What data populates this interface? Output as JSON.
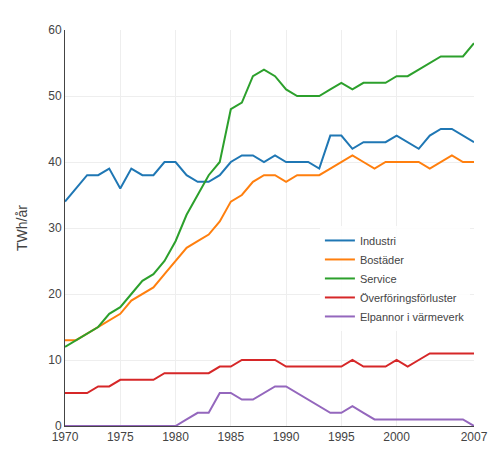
{
  "chart_data": {
    "type": "line",
    "ylabel": "TWh/år",
    "x": [
      1970,
      1971,
      1972,
      1973,
      1974,
      1975,
      1976,
      1977,
      1978,
      1979,
      1980,
      1981,
      1982,
      1983,
      1984,
      1985,
      1986,
      1987,
      1988,
      1989,
      1990,
      1991,
      1992,
      1993,
      1994,
      1995,
      1996,
      1997,
      1998,
      1999,
      2000,
      2001,
      2002,
      2003,
      2004,
      2005,
      2006,
      2007
    ],
    "series": [
      {
        "name": "Industri",
        "values": [
          34,
          36,
          38,
          38,
          39,
          36,
          39,
          38,
          38,
          40,
          40,
          38,
          37,
          37,
          38,
          40,
          41,
          41,
          40,
          41,
          40,
          40,
          40,
          39,
          44,
          44,
          42,
          43,
          43,
          43,
          44,
          43,
          42,
          44,
          45,
          45,
          44,
          43
        ]
      },
      {
        "name": "Bostäder",
        "values": [
          13,
          13,
          14,
          15,
          16,
          17,
          19,
          20,
          21,
          23,
          25,
          27,
          28,
          29,
          31,
          34,
          35,
          37,
          38,
          38,
          37,
          38,
          38,
          38,
          39,
          40,
          41,
          40,
          39,
          40,
          40,
          40,
          40,
          39,
          40,
          41,
          40,
          40
        ]
      },
      {
        "name": "Service",
        "values": [
          12,
          13,
          14,
          15,
          17,
          18,
          20,
          22,
          23,
          25,
          28,
          32,
          35,
          38,
          40,
          48,
          49,
          53,
          54,
          53,
          51,
          50,
          50,
          50,
          51,
          52,
          51,
          52,
          52,
          52,
          53,
          53,
          54,
          55,
          56,
          56,
          56,
          58
        ]
      },
      {
        "name": "Överföringsförluster",
        "values": [
          5,
          5,
          5,
          6,
          6,
          7,
          7,
          7,
          7,
          8,
          8,
          8,
          8,
          8,
          9,
          9,
          10,
          10,
          10,
          10,
          9,
          9,
          9,
          9,
          9,
          9,
          10,
          9,
          9,
          9,
          10,
          9,
          10,
          11,
          11,
          11,
          11,
          11
        ]
      },
      {
        "name": "Elpannor i värmeverk",
        "values": [
          0,
          0,
          0,
          0,
          0,
          0,
          0,
          0,
          0,
          0,
          0,
          1,
          2,
          2,
          5,
          5,
          4,
          4,
          5,
          6,
          6,
          5,
          4,
          3,
          2,
          2,
          3,
          2,
          1,
          1,
          1,
          1,
          1,
          1,
          1,
          1,
          1,
          0
        ]
      }
    ],
    "xlim": [
      1970,
      2007
    ],
    "ylim": [
      0,
      60
    ],
    "xticks": [
      1970,
      1975,
      1980,
      1985,
      1990,
      1995,
      2000,
      2007
    ],
    "yticks": [
      0,
      10,
      20,
      30,
      40,
      50,
      60
    ],
    "grid": true,
    "legend": "lower right"
  }
}
